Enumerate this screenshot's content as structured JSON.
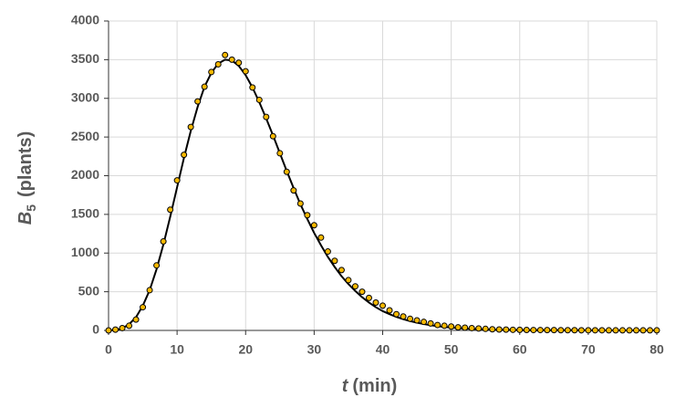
{
  "chart_data": {
    "type": "scatter",
    "xlabel": {
      "symbol": "t",
      "unit": "(min)"
    },
    "ylabel": {
      "symbol": "B",
      "subscript": "5",
      "unit": "(plants)"
    },
    "x": [
      0,
      1,
      2,
      3,
      4,
      5,
      6,
      7,
      8,
      9,
      10,
      11,
      12,
      13,
      14,
      15,
      16,
      17,
      18,
      19,
      20,
      21,
      22,
      23,
      24,
      25,
      26,
      27,
      28,
      29,
      30,
      31,
      32,
      33,
      34,
      35,
      36,
      37,
      38,
      39,
      40,
      41,
      42,
      43,
      44,
      45,
      46,
      47,
      48,
      49,
      50,
      51,
      52,
      53,
      54,
      55,
      56,
      57,
      58,
      59,
      60,
      61,
      62,
      63,
      64,
      65,
      66,
      67,
      68,
      69,
      70,
      71,
      72,
      73,
      74,
      75,
      76,
      77,
      78,
      79,
      80
    ],
    "series": [
      {
        "mode": "markers",
        "color": "#f5b800",
        "values": [
          0,
          10,
          30,
          60,
          140,
          300,
          520,
          840,
          1150,
          1560,
          1940,
          2270,
          2630,
          2960,
          3150,
          3340,
          3440,
          3560,
          3500,
          3460,
          3350,
          3140,
          2980,
          2760,
          2510,
          2290,
          2050,
          1810,
          1640,
          1490,
          1360,
          1200,
          1020,
          900,
          780,
          650,
          570,
          500,
          420,
          360,
          320,
          260,
          210,
          180,
          150,
          130,
          110,
          90,
          70,
          60,
          50,
          40,
          35,
          30,
          25,
          20,
          15,
          12,
          10,
          8,
          7,
          6,
          5,
          5,
          4,
          4,
          3,
          3,
          3,
          2,
          2,
          2,
          2,
          1,
          1,
          1,
          1,
          1,
          1,
          1,
          1
        ]
      },
      {
        "mode": "line",
        "color": "#000000",
        "values": [
          0,
          5,
          25,
          80,
          170,
          320,
          520,
          790,
          1110,
          1470,
          1850,
          2230,
          2580,
          2890,
          3150,
          3330,
          3450,
          3500,
          3490,
          3420,
          3300,
          3140,
          2950,
          2740,
          2520,
          2290,
          2060,
          1840,
          1630,
          1440,
          1260,
          1100,
          950,
          820,
          700,
          600,
          510,
          430,
          360,
          300,
          250,
          210,
          175,
          145,
          120,
          100,
          82,
          67,
          55,
          45,
          37,
          30,
          24,
          20,
          16,
          13,
          10,
          8,
          7,
          5,
          4,
          3,
          3,
          2,
          2,
          1,
          1,
          1,
          1,
          1,
          0,
          0,
          0,
          0,
          0,
          0,
          0,
          0,
          0,
          0,
          0
        ]
      }
    ],
    "xlim": [
      0,
      80
    ],
    "xticks": [
      0,
      10,
      20,
      30,
      40,
      50,
      60,
      70,
      80
    ],
    "ylim": [
      0,
      4000
    ],
    "yticks": [
      0,
      500,
      1000,
      1500,
      2000,
      2500,
      3000,
      3500,
      4000
    ],
    "grid": true
  }
}
